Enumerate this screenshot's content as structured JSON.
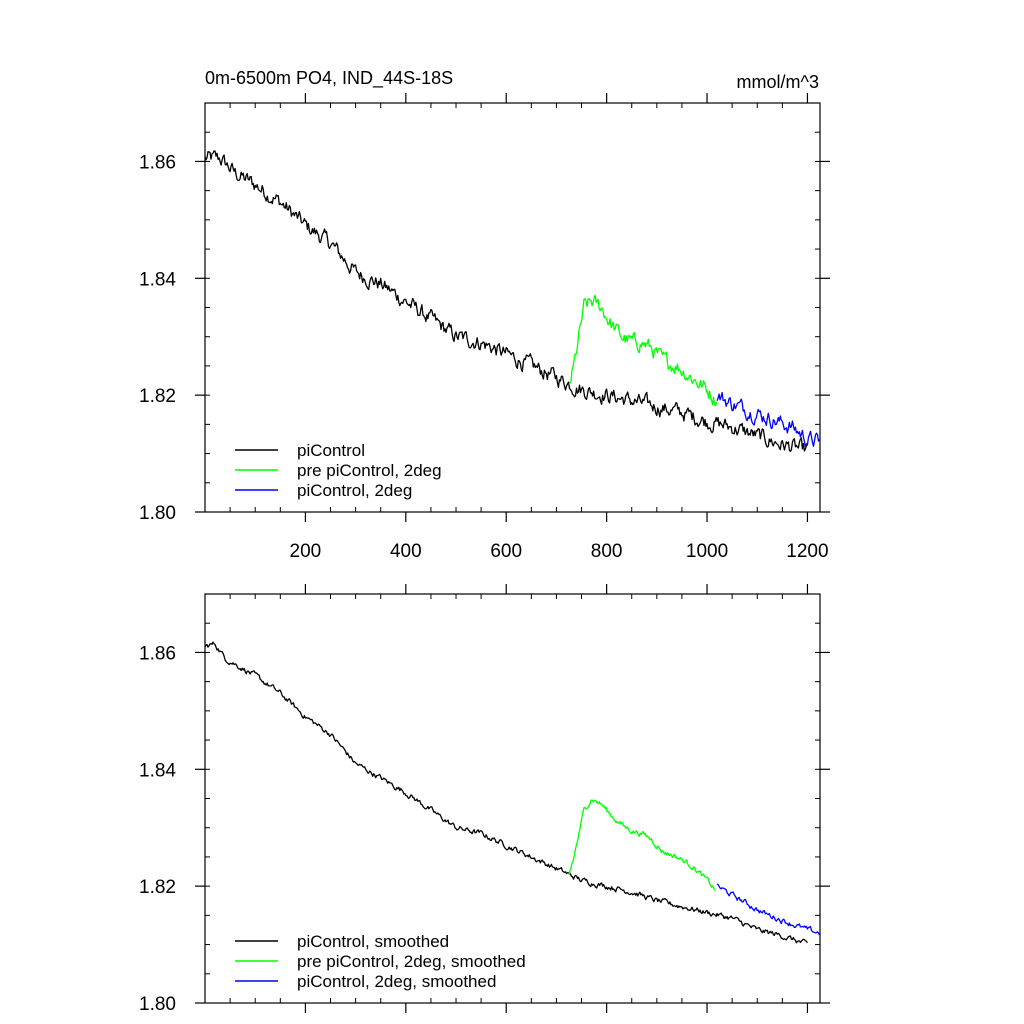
{
  "chart_data": [
    {
      "type": "line",
      "title": "0m-6500m PO4, IND_44S-18S",
      "units": "mmol/m^3",
      "xlabel": "",
      "ylabel": "",
      "xlim": [
        0,
        1225
      ],
      "ylim": [
        1.8,
        1.87
      ],
      "x_ticks": [
        200,
        400,
        600,
        800,
        1000,
        1200
      ],
      "x_tick_labels": [
        "200",
        "400",
        "600",
        "800",
        "1000",
        "1200"
      ],
      "y_ticks": [
        1.8,
        1.82,
        1.84,
        1.86
      ],
      "y_tick_labels": [
        "1.80",
        "1.82",
        "1.84",
        "1.86"
      ],
      "grid": false,
      "legend_position": "bottom-left",
      "noise_amplitude": 0.0011,
      "series": [
        {
          "name": "piControl",
          "color": "#000000",
          "x": [
            0,
            30,
            60,
            100,
            150,
            200,
            250,
            300,
            350,
            400,
            450,
            500,
            550,
            600,
            650,
            700,
            750,
            800,
            850,
            900,
            950,
            1000,
            1050,
            1100,
            1150,
            1200
          ],
          "y": [
            1.8605,
            1.8605,
            1.858,
            1.856,
            1.853,
            1.849,
            1.846,
            1.841,
            1.839,
            1.836,
            1.833,
            1.83,
            1.829,
            1.827,
            1.825,
            1.823,
            1.821,
            1.82,
            1.819,
            1.818,
            1.817,
            1.8155,
            1.8145,
            1.813,
            1.8115,
            1.8105
          ]
        },
        {
          "name": "pre piControl, 2deg",
          "color": "#00ff00",
          "x": [
            725,
            735,
            745,
            755,
            770,
            790,
            810,
            830,
            850,
            870,
            890,
            910,
            940,
            970,
            1000,
            1020
          ],
          "y": [
            1.8215,
            1.825,
            1.83,
            1.835,
            1.836,
            1.835,
            1.832,
            1.83,
            1.829,
            1.829,
            1.828,
            1.826,
            1.825,
            1.823,
            1.821,
            1.819
          ]
        },
        {
          "name": "piControl, 2deg",
          "color": "#0000ff",
          "x": [
            1020,
            1050,
            1080,
            1110,
            1140,
            1170,
            1200,
            1225
          ],
          "y": [
            1.82,
            1.8185,
            1.8175,
            1.8165,
            1.8155,
            1.8145,
            1.8125,
            1.812
          ]
        }
      ]
    },
    {
      "type": "line",
      "title": "",
      "units": "",
      "xlabel": "",
      "ylabel": "",
      "xlim": [
        0,
        1225
      ],
      "ylim": [
        1.8,
        1.87
      ],
      "x_ticks": [
        200,
        400,
        600,
        800,
        1000,
        1200
      ],
      "x_tick_labels": [],
      "y_ticks": [
        1.8,
        1.82,
        1.84,
        1.86
      ],
      "y_tick_labels": [
        "1.80",
        "1.82",
        "1.84",
        "1.86"
      ],
      "grid": false,
      "legend_position": "bottom-left",
      "noise_amplitude": 0.0004,
      "series": [
        {
          "name": "piControl, smoothed",
          "color": "#000000",
          "x": [
            0,
            20,
            40,
            60,
            100,
            150,
            200,
            250,
            300,
            350,
            400,
            450,
            500,
            550,
            600,
            650,
            700,
            750,
            800,
            850,
            900,
            950,
            1000,
            1050,
            1100,
            1150,
            1200
          ],
          "y": [
            1.861,
            1.8615,
            1.859,
            1.858,
            1.856,
            1.853,
            1.849,
            1.846,
            1.841,
            1.8385,
            1.836,
            1.833,
            1.83,
            1.829,
            1.827,
            1.825,
            1.823,
            1.821,
            1.82,
            1.819,
            1.8175,
            1.8165,
            1.8155,
            1.8145,
            1.8125,
            1.8115,
            1.81
          ]
        },
        {
          "name": "pre piControl, 2deg, smoothed",
          "color": "#00ff00",
          "x": [
            725,
            735,
            745,
            755,
            770,
            790,
            810,
            830,
            850,
            870,
            890,
            910,
            940,
            970,
            1000,
            1015
          ],
          "y": [
            1.822,
            1.825,
            1.829,
            1.833,
            1.835,
            1.834,
            1.832,
            1.8305,
            1.8295,
            1.829,
            1.828,
            1.826,
            1.825,
            1.8235,
            1.821,
            1.8195
          ]
        },
        {
          "name": "piControl, 2deg, smoothed",
          "color": "#0000ff",
          "x": [
            1020,
            1050,
            1080,
            1110,
            1140,
            1170,
            1200,
            1225
          ],
          "y": [
            1.82,
            1.8185,
            1.817,
            1.8155,
            1.8145,
            1.8135,
            1.8125,
            1.812
          ]
        }
      ]
    }
  ]
}
